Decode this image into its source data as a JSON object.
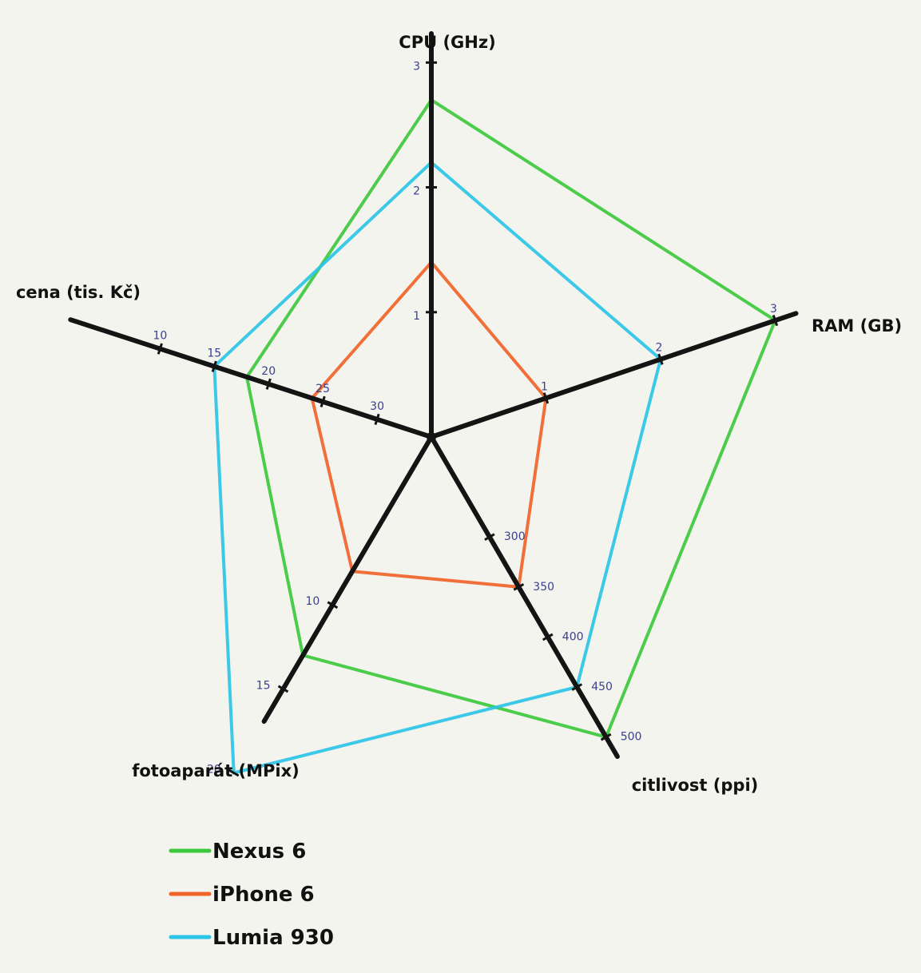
{
  "chart_data": {
    "type": "radar",
    "axes": [
      {
        "label": "CPU (GHz)",
        "ticks": [
          "1",
          "2",
          "3"
        ],
        "tick_values": [
          1,
          2,
          3
        ],
        "range": [
          0,
          3.2
        ]
      },
      {
        "label": "RAM (GB)",
        "ticks": [
          "1",
          "2",
          "3"
        ],
        "tick_values": [
          1,
          2,
          3
        ],
        "range": [
          0,
          3.3
        ]
      },
      {
        "label": "citlivost (ppi)",
        "ticks": [
          "300",
          "350",
          "400",
          "450",
          "500"
        ],
        "tick_values": [
          300,
          350,
          400,
          450,
          500
        ],
        "range": [
          200,
          545
        ]
      },
      {
        "label": "fotoaparát (MPix)",
        "ticks": [
          "10",
          "15",
          "20"
        ],
        "tick_values": [
          10,
          15,
          20
        ],
        "range": [
          0,
          20.5
        ]
      },
      {
        "label": "cena (tis. Kč)",
        "ticks": [
          "10",
          "15",
          "20",
          "25",
          "30"
        ],
        "tick_values": [
          10,
          15,
          20,
          25,
          30
        ],
        "range": [
          35,
          0
        ]
      }
    ],
    "series": [
      {
        "name": "Nexus 6",
        "color": "#3cc83c",
        "values": [
          2.7,
          3.0,
          500,
          13,
          18
        ]
      },
      {
        "name": "iPhone 6",
        "color": "#f0642a",
        "values": [
          1.4,
          1.0,
          350,
          8,
          24
        ]
      },
      {
        "name": "Lumia 930",
        "color": "#2bc3e6",
        "values": [
          2.2,
          2.0,
          450,
          20,
          15
        ]
      }
    ]
  }
}
